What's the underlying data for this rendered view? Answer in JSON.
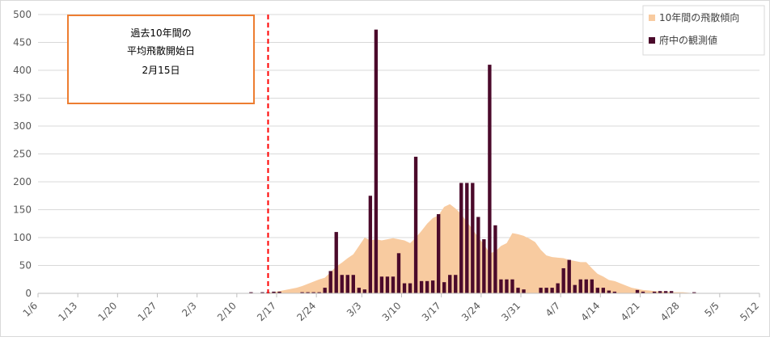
{
  "chart_data": {
    "type": "bar",
    "title": "",
    "xlabel": "",
    "ylabel": "",
    "ylim": [
      0,
      500
    ],
    "yticks": [
      "0",
      "50",
      "100",
      "150",
      "200",
      "250",
      "300",
      "350",
      "400",
      "450",
      "500"
    ],
    "x_tick_labels": [
      "1/6",
      "1/13",
      "1/20",
      "1/27",
      "2/3",
      "2/10",
      "2/17",
      "2/24",
      "3/3",
      "3/10",
      "3/17",
      "3/24",
      "3/31",
      "4/7",
      "4/14",
      "4/21",
      "4/28",
      "5/5",
      "5/12"
    ],
    "x_start": "1/6",
    "grid": true,
    "legend_position": "top-right",
    "series": [
      {
        "name": "10年間の飛散傾向",
        "kind": "area",
        "color": "#f8cba0",
        "points": [
          [
            "2/13",
            0
          ],
          [
            "2/14",
            0
          ],
          [
            "2/15",
            1
          ],
          [
            "2/16",
            2
          ],
          [
            "2/17",
            4
          ],
          [
            "2/18",
            6
          ],
          [
            "2/19",
            8
          ],
          [
            "2/20",
            10
          ],
          [
            "2/21",
            13
          ],
          [
            "2/22",
            17
          ],
          [
            "2/23",
            21
          ],
          [
            "2/24",
            25
          ],
          [
            "2/25",
            28
          ],
          [
            "2/26",
            38
          ],
          [
            "2/27",
            48
          ],
          [
            "2/28",
            55
          ],
          [
            "2/29",
            63
          ],
          [
            "3/1",
            70
          ],
          [
            "3/2",
            85
          ],
          [
            "3/3",
            100
          ],
          [
            "3/4",
            95
          ],
          [
            "3/5",
            97
          ],
          [
            "3/6",
            95
          ],
          [
            "3/7",
            97
          ],
          [
            "3/8",
            99
          ],
          [
            "3/9",
            97
          ],
          [
            "3/10",
            95
          ],
          [
            "3/11",
            90
          ],
          [
            "3/12",
            100
          ],
          [
            "3/13",
            112
          ],
          [
            "3/14",
            125
          ],
          [
            "3/15",
            135
          ],
          [
            "3/16",
            140
          ],
          [
            "3/17",
            155
          ],
          [
            "3/18",
            160
          ],
          [
            "3/19",
            152
          ],
          [
            "3/20",
            142
          ],
          [
            "3/21",
            128
          ],
          [
            "3/22",
            115
          ],
          [
            "3/23",
            100
          ],
          [
            "3/24",
            88
          ],
          [
            "3/25",
            72
          ],
          [
            "3/26",
            75
          ],
          [
            "3/27",
            85
          ],
          [
            "3/28",
            90
          ],
          [
            "3/29",
            108
          ],
          [
            "3/30",
            106
          ],
          [
            "3/31",
            103
          ],
          [
            "4/1",
            98
          ],
          [
            "4/2",
            92
          ],
          [
            "4/3",
            78
          ],
          [
            "4/4",
            68
          ],
          [
            "4/5",
            65
          ],
          [
            "4/6",
            64
          ],
          [
            "4/7",
            63
          ],
          [
            "4/8",
            60
          ],
          [
            "4/9",
            58
          ],
          [
            "4/10",
            56
          ],
          [
            "4/11",
            56
          ],
          [
            "4/12",
            45
          ],
          [
            "4/13",
            35
          ],
          [
            "4/14",
            30
          ],
          [
            "4/15",
            24
          ],
          [
            "4/16",
            22
          ],
          [
            "4/17",
            18
          ],
          [
            "4/18",
            14
          ],
          [
            "4/19",
            10
          ],
          [
            "4/20",
            8
          ],
          [
            "4/21",
            6
          ],
          [
            "4/22",
            5
          ],
          [
            "4/23",
            4
          ],
          [
            "4/24",
            3
          ],
          [
            "4/25",
            3
          ],
          [
            "4/26",
            2
          ],
          [
            "4/27",
            2
          ],
          [
            "4/28",
            2
          ],
          [
            "4/29",
            1
          ],
          [
            "4/30",
            0
          ]
        ]
      },
      {
        "name": "府中の観測値",
        "kind": "bar",
        "color": "#4b0a2b",
        "points": [
          [
            "2/12",
            2
          ],
          [
            "2/14",
            2
          ],
          [
            "2/15",
            2
          ],
          [
            "2/16",
            3
          ],
          [
            "2/17",
            3
          ],
          [
            "2/21",
            2
          ],
          [
            "2/22",
            2
          ],
          [
            "2/23",
            2
          ],
          [
            "2/24",
            2
          ],
          [
            "2/25",
            10
          ],
          [
            "2/26",
            40
          ],
          [
            "2/27",
            110
          ],
          [
            "2/28",
            33
          ],
          [
            "2/29",
            33
          ],
          [
            "3/1",
            33
          ],
          [
            "3/2",
            10
          ],
          [
            "3/3",
            7
          ],
          [
            "3/4",
            175
          ],
          [
            "3/5",
            473
          ],
          [
            "3/6",
            30
          ],
          [
            "3/7",
            30
          ],
          [
            "3/8",
            30
          ],
          [
            "3/9",
            72
          ],
          [
            "3/10",
            18
          ],
          [
            "3/11",
            18
          ],
          [
            "3/12",
            245
          ],
          [
            "3/13",
            22
          ],
          [
            "3/14",
            22
          ],
          [
            "3/15",
            23
          ],
          [
            "3/16",
            142
          ],
          [
            "3/17",
            20
          ],
          [
            "3/18",
            33
          ],
          [
            "3/19",
            33
          ],
          [
            "3/20",
            198
          ],
          [
            "3/21",
            198
          ],
          [
            "3/22",
            198
          ],
          [
            "3/23",
            137
          ],
          [
            "3/24",
            97
          ],
          [
            "3/25",
            410
          ],
          [
            "3/26",
            122
          ],
          [
            "3/27",
            25
          ],
          [
            "3/28",
            25
          ],
          [
            "3/29",
            25
          ],
          [
            "3/30",
            10
          ],
          [
            "3/31",
            7
          ],
          [
            "4/3",
            10
          ],
          [
            "4/4",
            10
          ],
          [
            "4/5",
            10
          ],
          [
            "4/6",
            18
          ],
          [
            "4/7",
            45
          ],
          [
            "4/8",
            60
          ],
          [
            "4/9",
            15
          ],
          [
            "4/10",
            25
          ],
          [
            "4/11",
            25
          ],
          [
            "4/12",
            25
          ],
          [
            "4/13",
            10
          ],
          [
            "4/14",
            10
          ],
          [
            "4/15",
            5
          ],
          [
            "4/16",
            3
          ],
          [
            "4/20",
            6
          ],
          [
            "4/21",
            3
          ],
          [
            "4/23",
            3
          ],
          [
            "4/24",
            4
          ],
          [
            "4/25",
            4
          ],
          [
            "4/26",
            4
          ],
          [
            "4/30",
            2
          ]
        ]
      }
    ],
    "reference_line": {
      "date": "2/15",
      "color": "#ff0000",
      "style": "dashed"
    },
    "annotation": {
      "lines": [
        "過去10年間の",
        "平均飛散開始日",
        "2月15日"
      ],
      "border_color": "#ed7d31"
    }
  }
}
